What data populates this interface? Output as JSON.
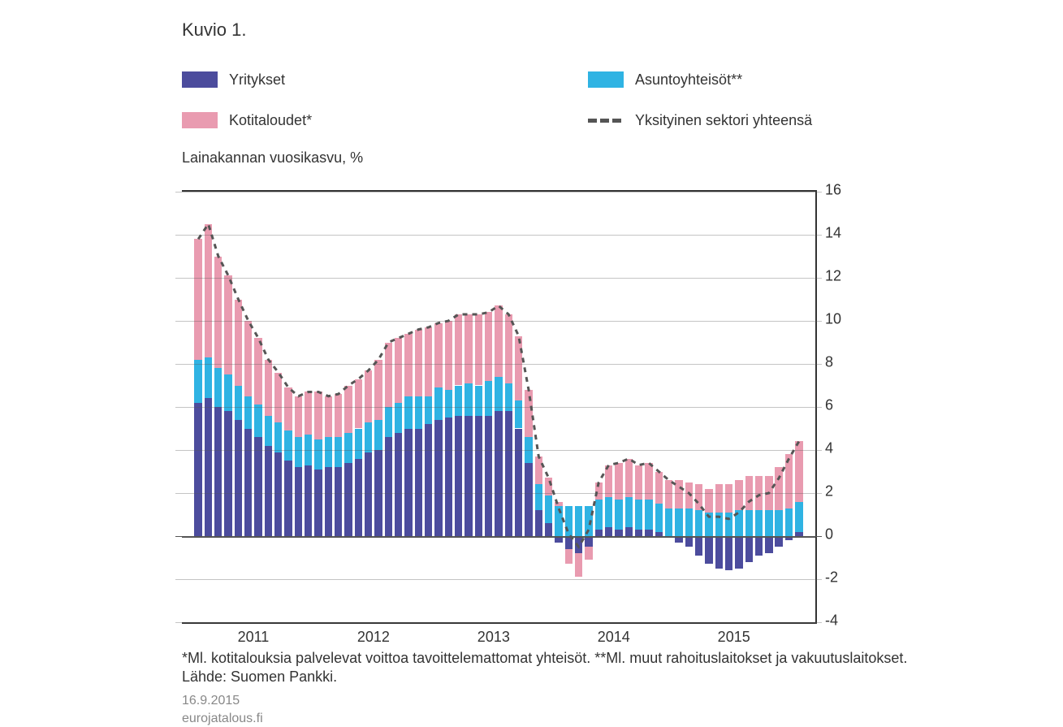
{
  "title": "Kuvio 1.",
  "legend": {
    "series_a": "Yritykset",
    "series_b": "Kotitaloudet*",
    "series_c": "Asuntoyhteisöt**",
    "series_d": "Yksityinen sektori yhteensä"
  },
  "y_axis_label": "Lainakannan vuosikasvu, %",
  "source_line": "*Ml. kotitalouksia palvelevat voittoa tavoittelemattomat yhteisöt. **Ml. muut rahoituslaitokset ja vakuutuslaitokset.",
  "source_line2": "Lähde: Suomen Pankki.",
  "footer_date": "16.9.2015",
  "footer_site": "eurojatalous.fi",
  "chart": {
    "type": "stacked-bar-with-line",
    "ylim": [
      -4,
      16
    ],
    "ytick_step": 2,
    "background": "#ffffff",
    "grid_color": "#555555",
    "axis_color": "#333333",
    "colors": {
      "yritykset": "#4c4c9d",
      "kotitaloudet": "#e99bb0",
      "asuntoyhteisot": "#2fb3e3",
      "total_line": "#555555"
    },
    "line_dash": "6,6",
    "line_width": 3,
    "bar_rel_width": 0.76,
    "x_year_labels": [
      "2011",
      "2012",
      "2013",
      "2014",
      "2015"
    ],
    "data": [
      {
        "a": 6.2,
        "b": 5.6,
        "c": 2.0
      },
      {
        "a": 6.4,
        "b": 6.2,
        "c": 1.9
      },
      {
        "a": 6.0,
        "b": 5.2,
        "c": 1.8
      },
      {
        "a": 5.8,
        "b": 4.6,
        "c": 1.7
      },
      {
        "a": 5.4,
        "b": 4.0,
        "c": 1.6
      },
      {
        "a": 5.0,
        "b": 3.5,
        "c": 1.5
      },
      {
        "a": 4.6,
        "b": 3.1,
        "c": 1.5
      },
      {
        "a": 4.2,
        "b": 2.6,
        "c": 1.4
      },
      {
        "a": 3.9,
        "b": 2.3,
        "c": 1.4
      },
      {
        "a": 3.5,
        "b": 2.0,
        "c": 1.4
      },
      {
        "a": 3.2,
        "b": 1.9,
        "c": 1.4
      },
      {
        "a": 3.3,
        "b": 2.0,
        "c": 1.4
      },
      {
        "a": 3.1,
        "b": 2.2,
        "c": 1.4
      },
      {
        "a": 3.2,
        "b": 1.9,
        "c": 1.4
      },
      {
        "a": 3.2,
        "b": 2.0,
        "c": 1.4
      },
      {
        "a": 3.4,
        "b": 2.2,
        "c": 1.4
      },
      {
        "a": 3.6,
        "b": 2.3,
        "c": 1.4
      },
      {
        "a": 3.9,
        "b": 2.4,
        "c": 1.4
      },
      {
        "a": 4.0,
        "b": 2.8,
        "c": 1.4
      },
      {
        "a": 4.6,
        "b": 3.0,
        "c": 1.4
      },
      {
        "a": 4.8,
        "b": 3.0,
        "c": 1.4
      },
      {
        "a": 5.0,
        "b": 2.9,
        "c": 1.5
      },
      {
        "a": 5.0,
        "b": 3.1,
        "c": 1.5
      },
      {
        "a": 5.2,
        "b": 3.2,
        "c": 1.3
      },
      {
        "a": 5.4,
        "b": 3.0,
        "c": 1.5
      },
      {
        "a": 5.5,
        "b": 3.2,
        "c": 1.3
      },
      {
        "a": 5.6,
        "b": 3.3,
        "c": 1.4
      },
      {
        "a": 5.6,
        "b": 3.2,
        "c": 1.5
      },
      {
        "a": 5.6,
        "b": 3.3,
        "c": 1.4
      },
      {
        "a": 5.6,
        "b": 3.2,
        "c": 1.6
      },
      {
        "a": 5.8,
        "b": 3.3,
        "c": 1.6
      },
      {
        "a": 5.8,
        "b": 3.2,
        "c": 1.3
      },
      {
        "a": 5.0,
        "b": 3.0,
        "c": 1.3
      },
      {
        "a": 3.4,
        "b": 2.2,
        "c": 1.2
      },
      {
        "a": 1.2,
        "b": 1.3,
        "c": 1.2
      },
      {
        "a": 0.6,
        "b": 0.8,
        "c": 1.3
      },
      {
        "a": -0.3,
        "b": 0.2,
        "c": 1.4
      },
      {
        "a": -0.6,
        "b": -0.7,
        "c": 1.4
      },
      {
        "a": -0.8,
        "b": -1.1,
        "c": 1.4
      },
      {
        "a": -0.5,
        "b": -0.6,
        "c": 1.4
      },
      {
        "a": 0.3,
        "b": 0.8,
        "c": 1.4
      },
      {
        "a": 0.4,
        "b": 1.5,
        "c": 1.4
      },
      {
        "a": 0.3,
        "b": 1.7,
        "c": 1.4
      },
      {
        "a": 0.4,
        "b": 1.8,
        "c": 1.4
      },
      {
        "a": 0.3,
        "b": 1.6,
        "c": 1.4
      },
      {
        "a": 0.3,
        "b": 1.7,
        "c": 1.4
      },
      {
        "a": 0.2,
        "b": 1.5,
        "c": 1.3
      },
      {
        "a": 0.0,
        "b": 1.3,
        "c": 1.3
      },
      {
        "a": -0.3,
        "b": 1.3,
        "c": 1.3
      },
      {
        "a": -0.5,
        "b": 1.2,
        "c": 1.3
      },
      {
        "a": -0.9,
        "b": 1.2,
        "c": 1.2
      },
      {
        "a": -1.3,
        "b": 1.1,
        "c": 1.1
      },
      {
        "a": -1.5,
        "b": 1.3,
        "c": 1.1
      },
      {
        "a": -1.6,
        "b": 1.3,
        "c": 1.1
      },
      {
        "a": -1.5,
        "b": 1.4,
        "c": 1.2
      },
      {
        "a": -1.2,
        "b": 1.6,
        "c": 1.2
      },
      {
        "a": -0.9,
        "b": 1.6,
        "c": 1.2
      },
      {
        "a": -0.8,
        "b": 1.6,
        "c": 1.2
      },
      {
        "a": -0.5,
        "b": 2.0,
        "c": 1.2
      },
      {
        "a": -0.2,
        "b": 2.5,
        "c": 1.3
      },
      {
        "a": 0.2,
        "b": 2.8,
        "c": 1.4
      }
    ]
  }
}
